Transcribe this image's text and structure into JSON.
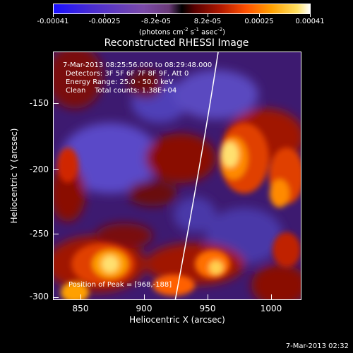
{
  "colorbar": {
    "tick_labels": [
      "-0.00041",
      "-0.00025",
      "-8.2e-05",
      "8.2e-05",
      "0.00025",
      "0.00041"
    ],
    "units_text": "(photons cm",
    "units_exp1": "-2",
    "units_mid": " s",
    "units_exp2": "-1",
    "units_end": " asec",
    "units_exp3": "-2",
    "units_close": ")"
  },
  "plot": {
    "title": "Reconstructed RHESSI Image",
    "annotations": {
      "time_range": "7-Mar-2013 08:25:56.000 to 08:29:48.000",
      "detectors": "Detectors: 3F 5F 6F 7F 8F 9F, Att 0",
      "energy_range": "Energy Range: 25.0 - 50.0 keV",
      "clean_counts": "Clean    Total counts: 1.38E+04",
      "peak_position": "Position of Peak = [968,-188]"
    },
    "x_axis": {
      "label": "Heliocentric X (arcsec)",
      "ticks": [
        "850",
        "900",
        "950",
        "1000"
      ]
    },
    "y_axis": {
      "label": "Heliocentric Y (arcsec)",
      "ticks": [
        "-150",
        "-200",
        "-250",
        "-300"
      ]
    }
  },
  "footer": {
    "timestamp": "7-Mar-2013 02:32"
  }
}
